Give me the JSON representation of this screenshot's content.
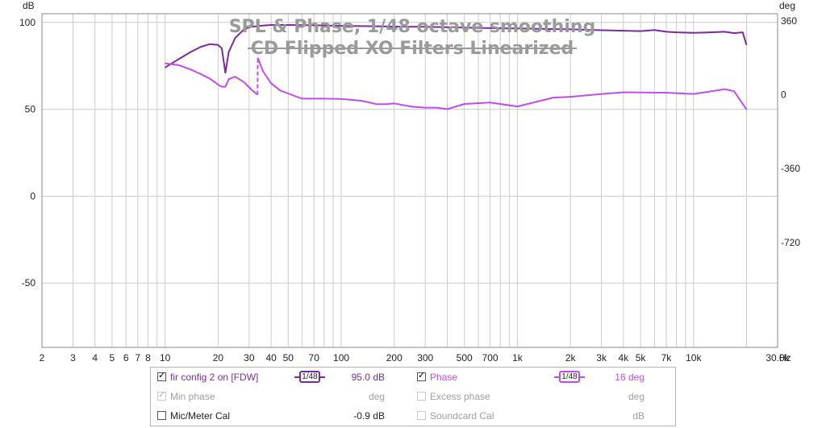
{
  "title": {
    "line1": "SPL & Phase, 1/48 octave smoothing",
    "line2": "CD Flipped XO Filters Linearized"
  },
  "colors": {
    "spl": "#7b2aa0",
    "phase": "#c04cf0",
    "grid": "#cccccc",
    "axis": "#8a8a8a",
    "title": "#9a9a9a",
    "disabled": "#a0a0a0"
  },
  "chart_data": {
    "type": "line",
    "title": "SPL & Phase, 1/48 octave smoothing — CD Flipped XO Filters Linearized",
    "xscale": "log",
    "xlim": [
      2,
      30000
    ],
    "xlabel": "Hz",
    "ylabel_left": "dB",
    "ylabel_right": "deg",
    "ylim": [
      -87,
      105
    ],
    "ylim_right": [
      -1231,
      395
    ],
    "y_ticks": [
      100,
      50,
      0,
      -50
    ],
    "y_tick_labels": [
      "100",
      "50",
      "0",
      "-50"
    ],
    "y_right_ticks": [
      360,
      0,
      -360,
      -720
    ],
    "y_right_tick_labels": [
      "360",
      "0",
      "-360",
      "-720"
    ],
    "x_ticks": [
      2,
      3,
      4,
      5,
      6,
      7,
      8,
      10,
      20,
      30,
      40,
      50,
      70,
      100,
      200,
      300,
      500,
      700,
      1000,
      2000,
      3000,
      4000,
      5000,
      7000,
      10000,
      30000
    ],
    "x_tick_labels": [
      "2",
      "3",
      "4",
      "5",
      "6",
      "7",
      "8",
      "10",
      "20",
      "30",
      "40",
      "50",
      "70",
      "100",
      "200",
      "300",
      "500",
      "700",
      "1k",
      "2k",
      "3k",
      "4k",
      "5k",
      "7k",
      "10k",
      "30.0k"
    ],
    "series": [
      {
        "name": "fir config 2 on [FDW]",
        "axis": "left",
        "x": [
          10,
          12,
          14,
          16,
          18,
          20,
          21,
          22,
          23,
          25,
          28,
          31,
          34,
          40,
          50,
          70,
          100,
          150,
          200,
          300,
          500,
          700,
          1000,
          1500,
          2000,
          3000,
          4000,
          5000,
          6000,
          7000,
          8000,
          10000,
          12000,
          15000,
          17000,
          19000,
          20000
        ],
        "values": [
          74,
          79,
          83,
          86,
          87.5,
          87,
          85,
          71,
          83,
          91,
          96,
          97.5,
          98,
          98.5,
          98.5,
          98.3,
          98,
          97.8,
          97.6,
          97.5,
          97,
          96.7,
          96.5,
          96.2,
          96,
          95.5,
          95.2,
          95,
          95.6,
          94.6,
          94.3,
          94,
          94.2,
          94.6,
          93.8,
          94.3,
          87
        ]
      },
      {
        "name": "Phase",
        "axis": "right",
        "x": [
          10,
          12,
          14,
          16,
          18,
          20,
          21,
          22,
          23,
          25,
          28,
          31,
          33.5,
          33.6,
          36,
          40,
          45,
          50,
          60,
          80,
          100,
          130,
          160,
          180,
          200,
          250,
          300,
          350,
          400,
          500,
          700,
          1000,
          1300,
          1600,
          2000,
          3000,
          4000,
          5000,
          7000,
          10000,
          15000,
          17000,
          20000
        ],
        "values": [
          153,
          144,
          123,
          100,
          78,
          49,
          39,
          39,
          76,
          88,
          62,
          24,
          0,
          180,
          114,
          56,
          21,
          6,
          -19,
          -19,
          -20,
          -29,
          -46,
          -46,
          -42,
          -58,
          -63,
          -63,
          -70,
          -45,
          -38,
          -57,
          -33,
          -14,
          -10,
          4,
          12,
          11,
          10,
          4,
          27,
          17,
          -72
        ]
      }
    ],
    "legend": [
      {
        "label": "fir config 2 on [FDW]",
        "checked": true,
        "smoothing": "1/48",
        "value": "95.0 dB"
      },
      {
        "label": "Min phase",
        "checked": true,
        "enabled": false,
        "value": "deg"
      },
      {
        "label": "Mic/Meter Cal",
        "checked": false,
        "value": "-0.9 dB"
      },
      {
        "label": "Phase",
        "checked": true,
        "smoothing": "1/48",
        "value": "16 deg"
      },
      {
        "label": "Excess phase",
        "checked": false,
        "enabled": false,
        "value": "deg"
      },
      {
        "label": "Soundcard Cal",
        "checked": false,
        "enabled": false,
        "value": "dB"
      }
    ]
  },
  "axes": {
    "left_unit": "dB",
    "right_unit": "deg",
    "x_unit": "Hz"
  },
  "legend": {
    "spl": {
      "label": "fir config 2 on [FDW]",
      "smoothing": "1/48",
      "value": "95.0 dB"
    },
    "minphase": {
      "label": "Min phase",
      "value": "deg"
    },
    "miccal": {
      "label": "Mic/Meter Cal",
      "value": "-0.9 dB"
    },
    "phase": {
      "label": "Phase",
      "smoothing": "1/48",
      "value": "16 deg"
    },
    "excess": {
      "label": "Excess phase",
      "value": "deg"
    },
    "soundcard": {
      "label": "Soundcard Cal",
      "value": "dB"
    }
  }
}
